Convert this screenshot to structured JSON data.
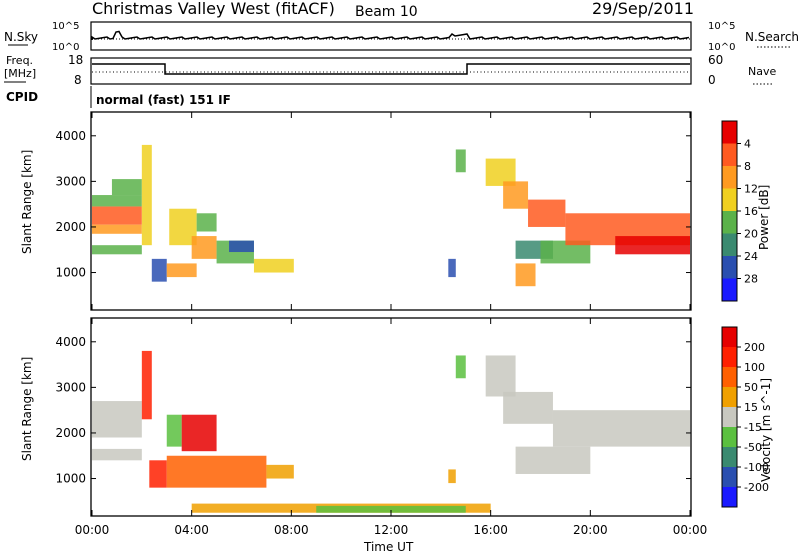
{
  "header": {
    "site": "Christmas Valley West (fitACF)",
    "beam": "Beam 10",
    "date": "29/Sep/2011"
  },
  "top_panels": {
    "nsky_label": "N.Sky",
    "nsearch_label": "N.Search",
    "nsky_ticks": [
      "10^5",
      "10^0"
    ],
    "nsearch_ticks": [
      "10^5",
      "10^0"
    ],
    "freq_label_1": "Freq.",
    "freq_label_2": "[MHz]",
    "freq_ticks": [
      "18",
      "8"
    ],
    "nave_label": "Nave",
    "nave_ticks": [
      "60",
      "0"
    ],
    "cpid_label": "CPID",
    "cpid_value": "normal (fast) 151 IF"
  },
  "chart_data": [
    {
      "type": "heatmap",
      "name": "power",
      "ylabel": "Slant Range [km]",
      "yticks": [
        "1000",
        "2000",
        "3000",
        "4000"
      ],
      "ylim": [
        200,
        4500
      ],
      "xlim_hours": [
        0,
        24
      ],
      "colorbar_label": "Power [dB]",
      "colorbar_ticks": [
        "4",
        "8",
        "12",
        "16",
        "20",
        "24",
        "28"
      ],
      "colors": [
        "#1a1aff",
        "#2a4fb0",
        "#3a8a70",
        "#5bb24a",
        "#f0d020",
        "#ff9a20",
        "#ff5a20",
        "#e60000"
      ],
      "regions": [
        {
          "t0": 0.0,
          "t1": 2.0,
          "r0": 2050,
          "r1": 2450,
          "level": 6
        },
        {
          "t0": 0.0,
          "t1": 2.0,
          "r0": 1850,
          "r1": 2050,
          "level": 5
        },
        {
          "t0": 0.0,
          "t1": 2.0,
          "r0": 2450,
          "r1": 2700,
          "level": 3
        },
        {
          "t0": 0.0,
          "t1": 2.0,
          "r0": 1400,
          "r1": 1600,
          "level": 3
        },
        {
          "t0": 0.8,
          "t1": 2.0,
          "r0": 2700,
          "r1": 3050,
          "level": 3
        },
        {
          "t0": 2.0,
          "t1": 2.4,
          "r0": 1600,
          "r1": 3800,
          "level": 4
        },
        {
          "t0": 2.4,
          "t1": 3.0,
          "r0": 800,
          "r1": 1300,
          "level": 1
        },
        {
          "t0": 3.0,
          "t1": 4.2,
          "r0": 900,
          "r1": 1200,
          "level": 5
        },
        {
          "t0": 3.1,
          "t1": 4.2,
          "r0": 1600,
          "r1": 2400,
          "level": 4
        },
        {
          "t0": 4.2,
          "t1": 5.0,
          "r0": 1900,
          "r1": 2300,
          "level": 3
        },
        {
          "t0": 4.0,
          "t1": 5.0,
          "r0": 1300,
          "r1": 1800,
          "level": 5
        },
        {
          "t0": 5.0,
          "t1": 6.5,
          "r0": 1200,
          "r1": 1700,
          "level": 3
        },
        {
          "t0": 5.5,
          "t1": 6.5,
          "r0": 1450,
          "r1": 1700,
          "level": 1
        },
        {
          "t0": 6.5,
          "t1": 8.1,
          "r0": 1000,
          "r1": 1300,
          "level": 4
        },
        {
          "t0": 14.3,
          "t1": 14.6,
          "r0": 900,
          "r1": 1300,
          "level": 1
        },
        {
          "t0": 14.6,
          "t1": 15.0,
          "r0": 3200,
          "r1": 3700,
          "level": 3
        },
        {
          "t0": 15.8,
          "t1": 17.0,
          "r0": 2900,
          "r1": 3500,
          "level": 4
        },
        {
          "t0": 16.5,
          "t1": 17.5,
          "r0": 2400,
          "r1": 3000,
          "level": 5
        },
        {
          "t0": 17.5,
          "t1": 19.0,
          "r0": 2000,
          "r1": 2600,
          "level": 6
        },
        {
          "t0": 17.0,
          "t1": 17.8,
          "r0": 700,
          "r1": 1200,
          "level": 5
        },
        {
          "t0": 17.0,
          "t1": 18.5,
          "r0": 1300,
          "r1": 1700,
          "level": 2
        },
        {
          "t0": 18.0,
          "t1": 20.0,
          "r0": 1200,
          "r1": 1700,
          "level": 3
        },
        {
          "t0": 19.0,
          "t1": 24.0,
          "r0": 1600,
          "r1": 2300,
          "level": 6
        },
        {
          "t0": 21.0,
          "t1": 24.0,
          "r0": 1400,
          "r1": 1800,
          "level": 7
        }
      ]
    },
    {
      "type": "heatmap",
      "name": "velocity",
      "ylabel": "Slant Range [km]",
      "yticks": [
        "1000",
        "2000",
        "3000",
        "4000"
      ],
      "ylim": [
        200,
        4500
      ],
      "xlim_hours": [
        0,
        24
      ],
      "xticks": [
        "00:00",
        "04:00",
        "08:00",
        "12:00",
        "16:00",
        "20:00",
        "00:00"
      ],
      "xlabel": "Time UT",
      "colorbar_label": "Velocity [m s^-1]",
      "colorbar_ticks": [
        "200",
        "100",
        "50",
        "15",
        "-15",
        "-50",
        "-100",
        "-200"
      ],
      "colors": [
        "#1a1aff",
        "#2a4fb0",
        "#3a8a70",
        "#5bc040",
        "#c8c8c0",
        "#f0a000",
        "#ff6000",
        "#ff2000",
        "#e60000"
      ],
      "regions": [
        {
          "t0": 0.0,
          "t1": 2.0,
          "r0": 1900,
          "r1": 2700,
          "level": 4
        },
        {
          "t0": 0.0,
          "t1": 2.0,
          "r0": 1400,
          "r1": 1650,
          "level": 4
        },
        {
          "t0": 2.0,
          "t1": 2.4,
          "r0": 2300,
          "r1": 3800,
          "level": 7
        },
        {
          "t0": 2.3,
          "t1": 3.0,
          "r0": 800,
          "r1": 1400,
          "level": 7
        },
        {
          "t0": 3.0,
          "t1": 3.6,
          "r0": 1700,
          "r1": 2400,
          "level": 3
        },
        {
          "t0": 3.6,
          "t1": 5.0,
          "r0": 1600,
          "r1": 2400,
          "level": 8
        },
        {
          "t0": 3.0,
          "t1": 7.0,
          "r0": 800,
          "r1": 1500,
          "level": 6
        },
        {
          "t0": 7.0,
          "t1": 8.1,
          "r0": 1000,
          "r1": 1300,
          "level": 5
        },
        {
          "t0": 14.3,
          "t1": 14.6,
          "r0": 900,
          "r1": 1200,
          "level": 5
        },
        {
          "t0": 14.6,
          "t1": 15.0,
          "r0": 3200,
          "r1": 3700,
          "level": 3
        },
        {
          "t0": 15.8,
          "t1": 17.0,
          "r0": 2800,
          "r1": 3700,
          "level": 4
        },
        {
          "t0": 16.5,
          "t1": 18.5,
          "r0": 2200,
          "r1": 2900,
          "level": 4
        },
        {
          "t0": 18.5,
          "t1": 24.0,
          "r0": 1700,
          "r1": 2500,
          "level": 4
        },
        {
          "t0": 17.0,
          "t1": 20.0,
          "r0": 1100,
          "r1": 1700,
          "level": 4
        },
        {
          "t0": 4.0,
          "t1": 16.0,
          "r0": 250,
          "r1": 450,
          "level": 5
        },
        {
          "t0": 9.0,
          "t1": 15.0,
          "r0": 250,
          "r1": 400,
          "level": 3
        }
      ]
    }
  ]
}
